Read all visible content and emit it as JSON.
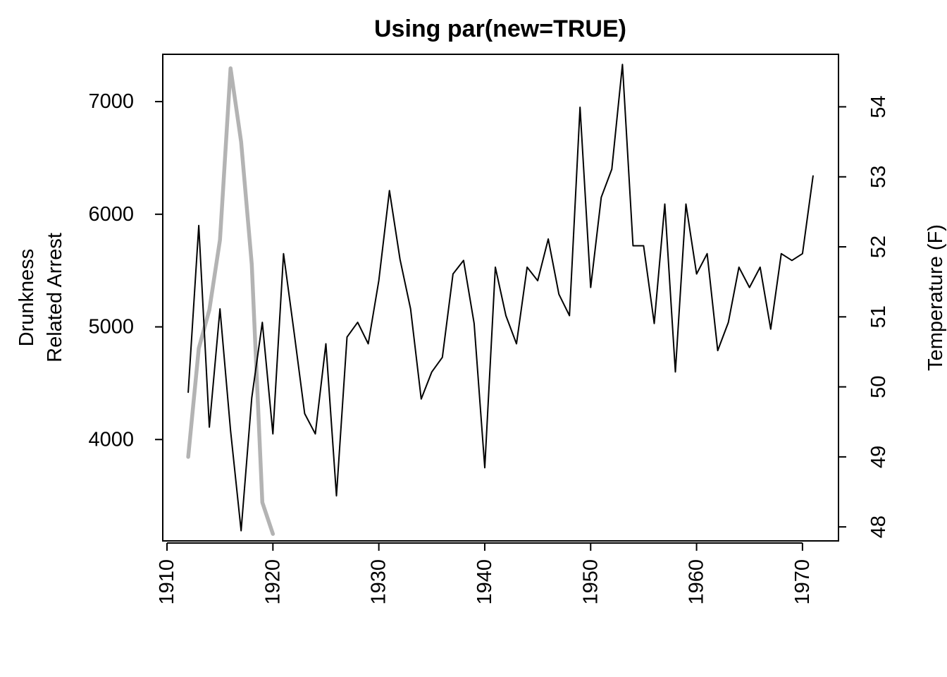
{
  "chart_data": {
    "type": "line",
    "title": "Using par(new=TRUE)",
    "ylabel_left": [
      "Drunkness",
      "Related Arrest"
    ],
    "ylabel_right": "Temperature (F)",
    "xlabel": "",
    "x_ticks": [
      1910,
      1920,
      1930,
      1940,
      1950,
      1960,
      1970
    ],
    "y_left_ticks": [
      4000,
      5000,
      6000,
      7000
    ],
    "y_right_ticks": [
      48,
      49,
      50,
      51,
      52,
      53,
      54
    ],
    "series": [
      {
        "axis": "left",
        "color": "#000000",
        "x": [
          1912,
          1913,
          1914,
          1915,
          1916,
          1917,
          1918,
          1919,
          1920,
          1921,
          1922,
          1923,
          1924,
          1925,
          1926,
          1927,
          1928,
          1929,
          1930,
          1931,
          1932,
          1933,
          1934,
          1935,
          1936,
          1937,
          1938,
          1939,
          1940,
          1941,
          1942,
          1943,
          1944,
          1945,
          1946,
          1947,
          1948,
          1949,
          1950,
          1951,
          1952,
          1953,
          1954,
          1955,
          1956,
          1957,
          1958,
          1959,
          1960,
          1961,
          1962,
          1963,
          1964,
          1965,
          1966,
          1967,
          1968,
          1969,
          1970,
          1971
        ],
        "values": [
          4420,
          5900,
          4110,
          5160,
          4080,
          3190,
          4370,
          5040,
          4050,
          5650,
          4950,
          4230,
          4050,
          4850,
          3500,
          4910,
          5040,
          4850,
          5410,
          6210,
          5600,
          5160,
          4360,
          4600,
          4730,
          5470,
          5590,
          5030,
          3750,
          5530,
          5100,
          4850,
          5530,
          5410,
          5780,
          5290,
          5100,
          6950,
          5350,
          6150,
          6400,
          7330,
          5720,
          5720,
          5030,
          6090,
          4600,
          6090,
          5470,
          5650,
          4790,
          5040,
          5530,
          5350,
          5530,
          4980,
          5650,
          5590,
          5650,
          6340
        ]
      },
      {
        "axis": "right",
        "color": "#b3b3b3",
        "x": [
          1912,
          1913,
          1914,
          1915,
          1916,
          1917,
          1918,
          1919,
          1920
        ],
        "values": [
          49.0,
          50.55,
          51.1,
          52.1,
          54.55,
          53.5,
          51.75,
          48.35,
          47.9
        ]
      }
    ],
    "xlim": [
      1909.6,
      1973.4
    ],
    "ylim_left": [
      3100,
      7420
    ],
    "ylim_right": [
      47.8,
      54.75
    ],
    "grid": false,
    "legend": "none"
  }
}
